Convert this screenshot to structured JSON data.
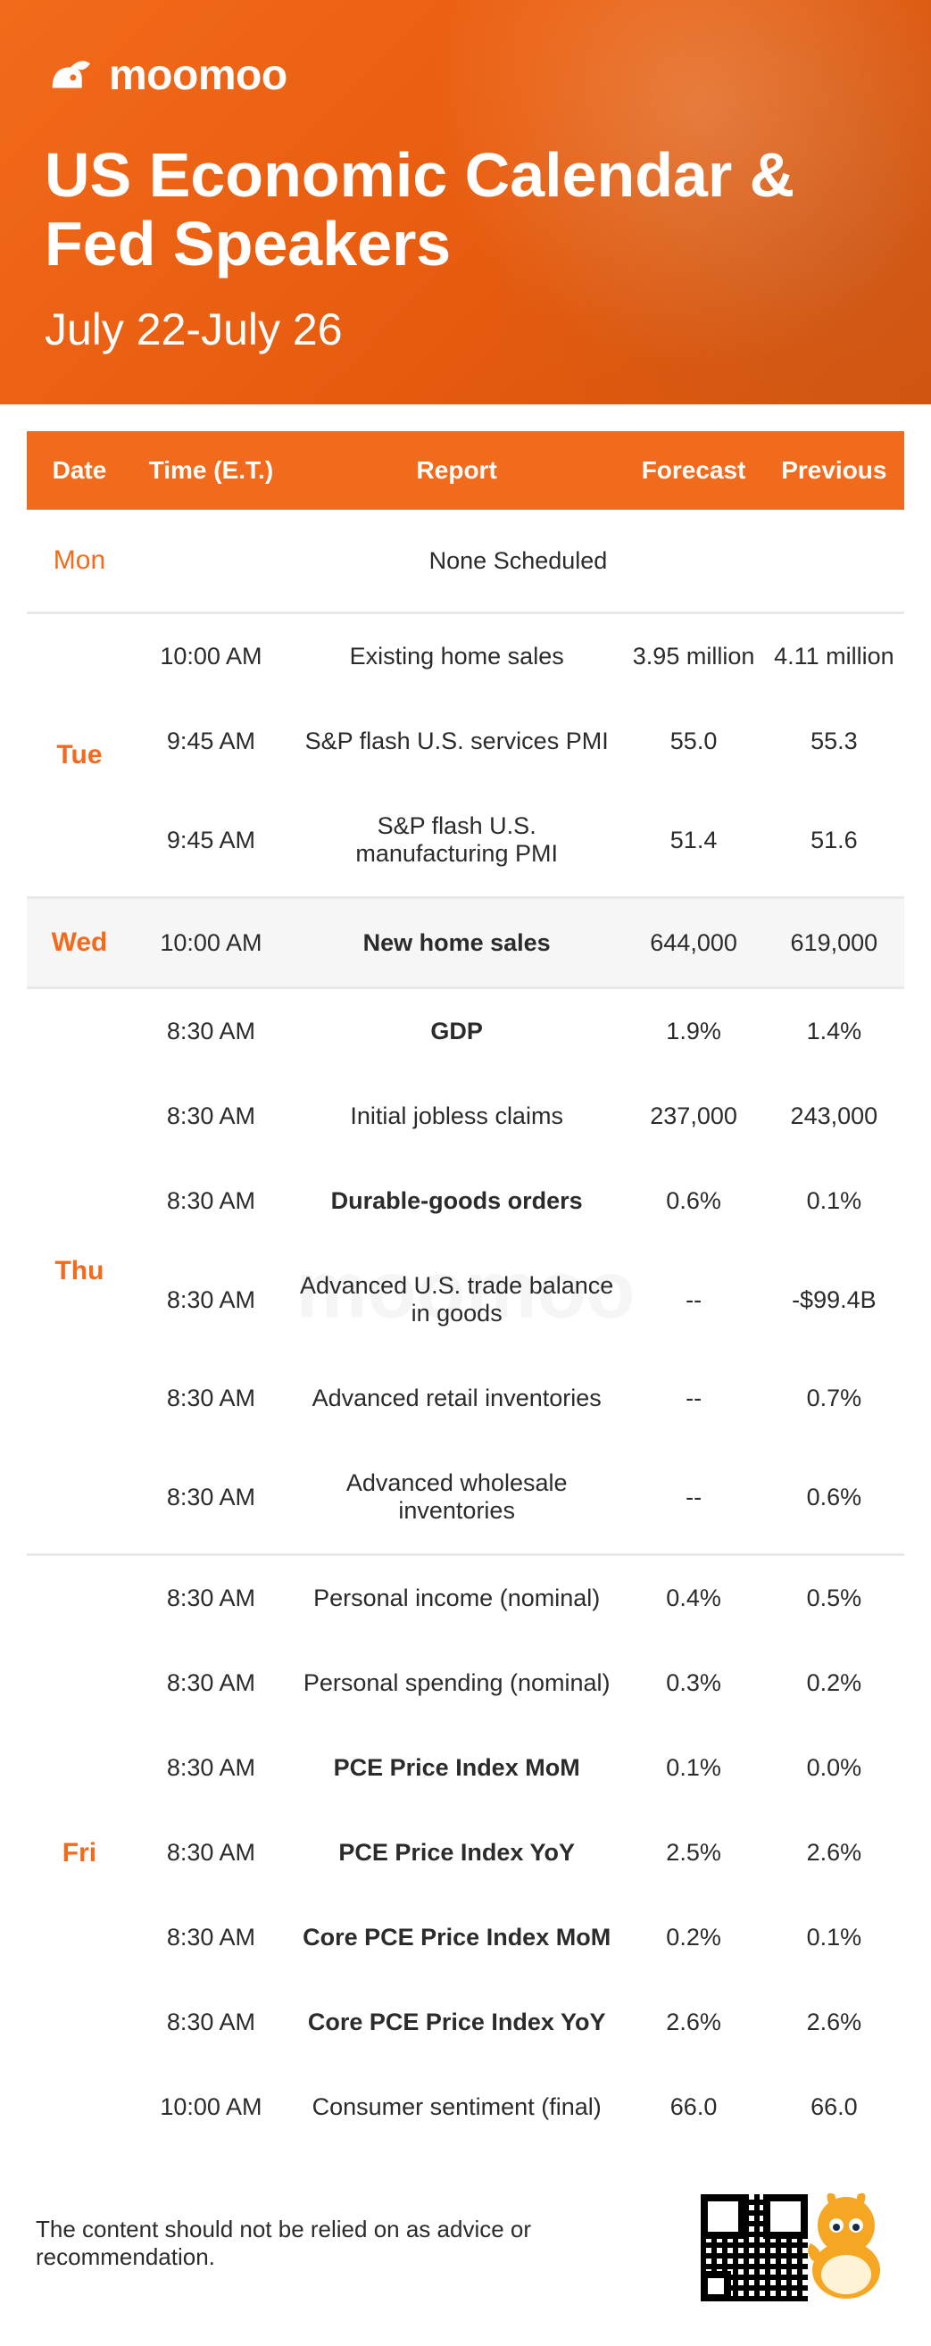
{
  "brand": "moomoo",
  "title": "US Economic Calendar & Fed Speakers",
  "date_range": "July 22-July 26",
  "colors": {
    "accent": "#f26a1b",
    "text": "#2b2b2b",
    "band_alt": "#f6f6f6",
    "separator": "#e8e8e8"
  },
  "columns": [
    "Date",
    "Time (E.T.)",
    "Report",
    "Forecast",
    "Previous"
  ],
  "days": [
    {
      "label": "Mon",
      "none": "None Scheduled",
      "rows": []
    },
    {
      "label": "Tue",
      "rows": [
        {
          "time": "10:00 AM",
          "report": "Existing home sales",
          "forecast": "3.95 million",
          "previous": "4.11 million",
          "bold": false
        },
        {
          "time": "9:45 AM",
          "report": "S&P flash U.S. services PMI",
          "forecast": "55.0",
          "previous": "55.3",
          "bold": false
        },
        {
          "time": "9:45 AM",
          "report": "S&P flash U.S. manufacturing PMI",
          "forecast": "51.4",
          "previous": "51.6",
          "bold": false
        }
      ]
    },
    {
      "label": "Wed",
      "alt": true,
      "rows": [
        {
          "time": "10:00 AM",
          "report": "New home sales",
          "forecast": "644,000",
          "previous": "619,000",
          "bold": true
        }
      ]
    },
    {
      "label": "Thu",
      "rows": [
        {
          "time": "8:30 AM",
          "report": "GDP",
          "forecast": "1.9%",
          "previous": "1.4%",
          "bold": true
        },
        {
          "time": "8:30 AM",
          "report": "Initial jobless claims",
          "forecast": "237,000",
          "previous": "243,000",
          "bold": false
        },
        {
          "time": "8:30 AM",
          "report": "Durable-goods orders",
          "forecast": "0.6%",
          "previous": "0.1%",
          "bold": true
        },
        {
          "time": "8:30 AM",
          "report": "Advanced U.S. trade balance in goods",
          "forecast": "--",
          "previous": "-$99.4B",
          "bold": false
        },
        {
          "time": "8:30 AM",
          "report": "Advanced retail inventories",
          "forecast": "--",
          "previous": "0.7%",
          "bold": false
        },
        {
          "time": "8:30 AM",
          "report": "Advanced wholesale inventories",
          "forecast": "--",
          "previous": "0.6%",
          "bold": false
        }
      ]
    },
    {
      "label": "Fri",
      "rows": [
        {
          "time": "8:30 AM",
          "report": "Personal income (nominal)",
          "forecast": "0.4%",
          "previous": "0.5%",
          "bold": false
        },
        {
          "time": "8:30 AM",
          "report": "Personal spending (nominal)",
          "forecast": "0.3%",
          "previous": "0.2%",
          "bold": false
        },
        {
          "time": "8:30 AM",
          "report": "PCE Price Index MoM",
          "forecast": "0.1%",
          "previous": "0.0%",
          "bold": true
        },
        {
          "time": "8:30 AM",
          "report": "PCE Price Index YoY",
          "forecast": "2.5%",
          "previous": "2.6%",
          "bold": true
        },
        {
          "time": "8:30 AM",
          "report": "Core PCE Price Index MoM",
          "forecast": "0.2%",
          "previous": "0.1%",
          "bold": true
        },
        {
          "time": "8:30 AM",
          "report": "Core PCE Price Index YoY",
          "forecast": "2.6%",
          "previous": "2.6%",
          "bold": true
        },
        {
          "time": "10:00 AM",
          "report": "Consumer sentiment (final)",
          "forecast": "66.0",
          "previous": "66.0",
          "bold": false
        }
      ]
    }
  ],
  "disclaimer": "The content should not be relied on as advice or recommendation.",
  "watermark": "moomoo"
}
